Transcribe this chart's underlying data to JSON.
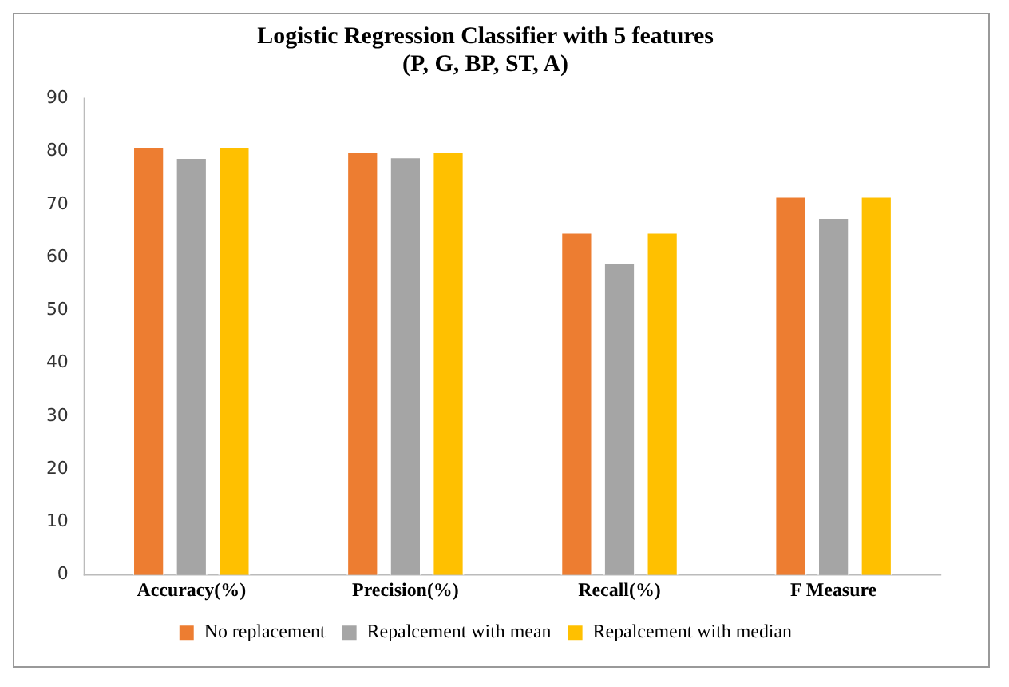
{
  "chart_data": {
    "type": "bar",
    "title": "Logistic Regression Classifier with 5 features\n(P, G, BP, ST, A)",
    "categories": [
      "Accuracy(%)",
      "Precision(%)",
      "Recall(%)",
      "F Measure"
    ],
    "series": [
      {
        "name": "No replacement",
        "color": "#ed7d31",
        "values": [
          81,
          80.1,
          64.8,
          71.6
        ]
      },
      {
        "name": "Repalcement with mean",
        "color": "#a5a5a5",
        "values": [
          78.9,
          79,
          59.1,
          67.6
        ]
      },
      {
        "name": "Repalcement with median",
        "color": "#ffc000",
        "values": [
          81,
          80.1,
          64.8,
          71.6
        ]
      }
    ],
    "ylim": [
      0,
      90
    ],
    "yticks": [
      0,
      10,
      20,
      30,
      40,
      50,
      60,
      70,
      80,
      90
    ],
    "grid": false,
    "legend": "bottom"
  }
}
